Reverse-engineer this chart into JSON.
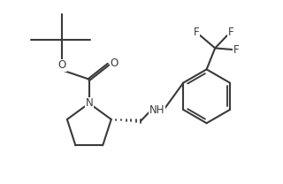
{
  "bg_color": "#ffffff",
  "line_color": "#3a3a3a",
  "line_width": 1.5,
  "font_size": 8.5,
  "label_color": "#3a3a3a",
  "xlim": [
    0,
    10
  ],
  "ylim": [
    0,
    6.5
  ]
}
